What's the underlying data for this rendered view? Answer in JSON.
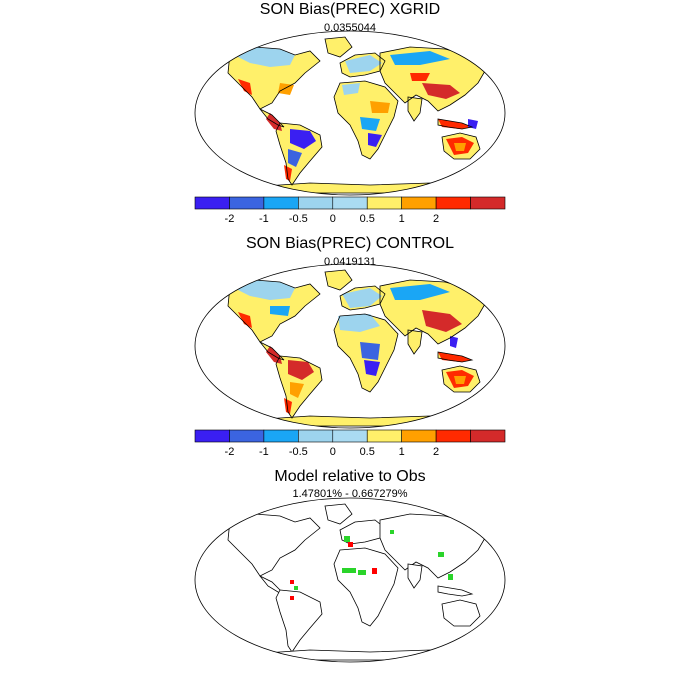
{
  "panels": [
    {
      "title": "SON Bias(PREC) XGRID",
      "subtitle": "0.0355044"
    },
    {
      "title": "SON Bias(PREC) CONTROL",
      "subtitle": "0.0419131"
    },
    {
      "title": "Model relative to Obs",
      "subtitle": "1.47801% - 0.667279%"
    }
  ],
  "colorbar": {
    "colors": [
      "#3a1ff2",
      "#3b64e0",
      "#1aa6f5",
      "#9dd4ee",
      "#aadbf2",
      "#fff06a",
      "#ffa000",
      "#ff2a00",
      "#d42a2a"
    ],
    "tick_labels": [
      "-2",
      "-1",
      "-0.5",
      "0",
      "0.5",
      "1",
      "2"
    ]
  },
  "palette": {
    "very_wet": "#3a1ff2",
    "wet": "#3b64e0",
    "slightly_wet": "#1aa6f5",
    "light_wet": "#9dd4ee",
    "neutral": "#fff06a",
    "slightly_dry": "#ffa000",
    "dry": "#ff2a00",
    "very_dry": "#d42a2a",
    "better": "#2ad42a",
    "worse": "#ff0000"
  }
}
